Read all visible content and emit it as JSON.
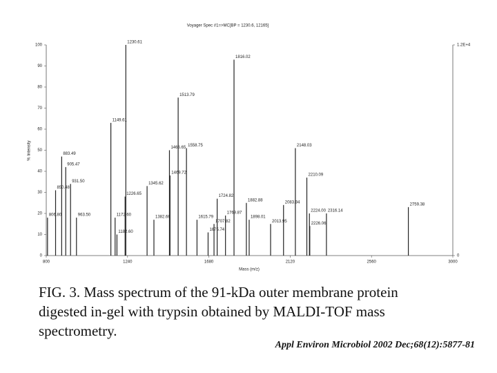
{
  "chart_data": {
    "type": "stem",
    "title": "Voyager Spec #1=>MC[BP = 1230.6, 12165]",
    "x_label": "Mass (m/z)",
    "y_label": "% Intensity",
    "x": [
      806.8,
      850.48,
      883.49,
      905.47,
      931.5,
      963.5,
      1149.61,
      1172.6,
      1182.6,
      1226.65,
      1230.61,
      1345.62,
      1382.66,
      1466.65,
      1469.72,
      1513.79,
      1558.75,
      1615.79,
      1675.74,
      1707.82,
      1724.82,
      1769.87,
      1816.02,
      1882.88,
      1898.01,
      2013.95,
      2083.94,
      2148.03,
      2210.09,
      2224.0,
      2226.06,
      2316.14,
      2759.38
    ],
    "x_labels": [
      "806.80",
      "850.48",
      "883.49",
      "905.47",
      "931.50",
      "963.50",
      "1149.61",
      "1172.60",
      "1182.60",
      "1226.65",
      "1230.61",
      "1345.62",
      "1382.66",
      "1466.65",
      "1469.72",
      "1513.79",
      "1558.75",
      "1615.79",
      "1675.74",
      "1707.82",
      "1724.82",
      "1769.87",
      "1816.02",
      "1882.88",
      "1898.01",
      "2013.95",
      "2083.94",
      "2148.03",
      "2210.09",
      "2224.00",
      "2226.06",
      "2316.14",
      "2759.38"
    ],
    "values": [
      18,
      31,
      47,
      42,
      34,
      18,
      63,
      18,
      10,
      28,
      100,
      33,
      17,
      50,
      38,
      75,
      51,
      17,
      11,
      15,
      27,
      19,
      93,
      25,
      17,
      15,
      24,
      51,
      37,
      20,
      14,
      20,
      23
    ],
    "color": "#222222",
    "xlim": [
      800,
      3000
    ],
    "xticks": [
      800,
      1240,
      1680,
      2120,
      2560,
      3000
    ],
    "ylim": [
      0,
      100
    ],
    "yticks": [
      0,
      10,
      20,
      30,
      40,
      50,
      60,
      70,
      80,
      90,
      100
    ],
    "y2lim": [
      0,
      12000
    ],
    "y2ticks": [
      {
        "value": 0,
        "label": "0"
      },
      {
        "value": 12000,
        "label": "1.2E+4"
      }
    ]
  },
  "caption": [
    "FIG. 3. Mass spectrum of the 91-kDa outer membrane protein",
    "digested in-gel with trypsin obtained by MALDI-TOF mass",
    "spectrometry."
  ],
  "citation": "Appl Environ Microbiol 2002 Dec;68(12):5877-81"
}
